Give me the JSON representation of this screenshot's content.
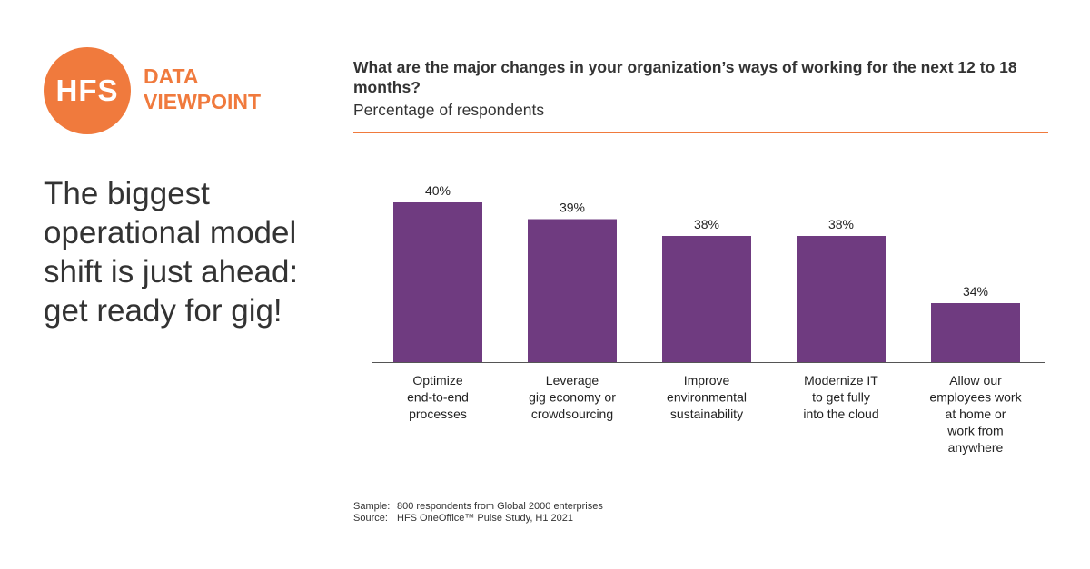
{
  "brand": {
    "logo_text": "HFS",
    "tag_line1": "DATA",
    "tag_line2": "VIEWPOINT",
    "accent_color": "#F07A3D"
  },
  "headline": "The biggest operational model shift is just ahead: get ready for gig!",
  "chart_data": {
    "type": "bar",
    "title": "What are the major changes in your organization’s ways of working for the next 12 to 18 months?",
    "subtitle": "Percentage of respondents",
    "categories": [
      [
        "Optimize",
        "end-to-end",
        "processes"
      ],
      [
        "Leverage",
        "gig economy or",
        "crowdsourcing"
      ],
      [
        "Improve",
        "environmental",
        "sustainability"
      ],
      [
        "Modernize IT",
        "to get fully",
        "into the cloud"
      ],
      [
        "Allow our",
        "employees work",
        "at home or",
        "work from",
        "anywhere"
      ]
    ],
    "values": [
      40,
      39,
      38,
      38,
      34
    ],
    "value_labels": [
      "40%",
      "39%",
      "38%",
      "38%",
      "34%"
    ],
    "bar_color": "#6F3B80",
    "grid": false
  },
  "notes": {
    "sample_key": "Sample:",
    "sample_value": "800 respondents from Global 2000 enterprises",
    "source_key": "Source:",
    "source_value": "HFS OneOffice™ Pulse Study, H1 2021"
  }
}
